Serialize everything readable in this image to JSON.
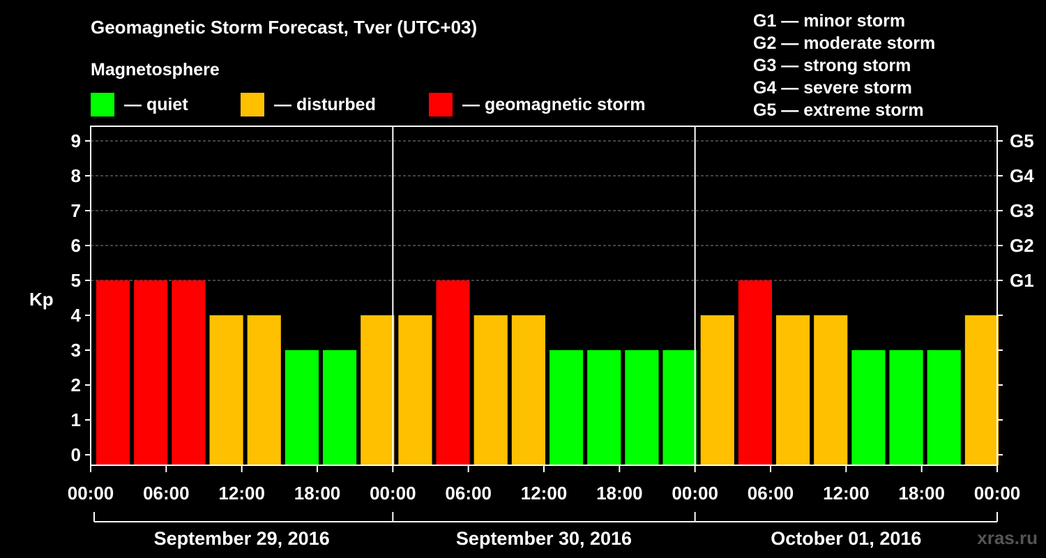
{
  "header": {
    "title": "Geomagnetic Storm Forecast, Tver (UTC+03)",
    "magnetosphere_label": "Magnetosphere"
  },
  "legend": {
    "quiet": {
      "label": "— quiet",
      "color": "#00ff00"
    },
    "disturbed": {
      "label": "— disturbed",
      "color": "#ffc000"
    },
    "storm": {
      "label": "— geomagnetic storm",
      "color": "#ff0000"
    }
  },
  "g_scale": [
    "G1 — minor storm",
    "G2 — moderate storm",
    "G3 — strong storm",
    "G4 — severe storm",
    "G5 — extreme storm"
  ],
  "watermark": "xras.ru",
  "chart_data": {
    "type": "bar",
    "title": "Geomagnetic Storm Forecast, Tver (UTC+03)",
    "ylabel": "Kp",
    "ylim": [
      0,
      9
    ],
    "y_ticks": [
      "0",
      "1",
      "2",
      "3",
      "4",
      "5",
      "6",
      "7",
      "8",
      "9"
    ],
    "right_axis_labels": [
      {
        "kp": 5,
        "label": "G1"
      },
      {
        "kp": 6,
        "label": "G2"
      },
      {
        "kp": 7,
        "label": "G3"
      },
      {
        "kp": 8,
        "label": "G4"
      },
      {
        "kp": 9,
        "label": "G5"
      }
    ],
    "x_tick_labels": [
      "00:00",
      "06:00",
      "12:00",
      "18:00",
      "00:00",
      "06:00",
      "12:00",
      "18:00",
      "00:00",
      "06:00",
      "12:00",
      "18:00",
      "00:00"
    ],
    "days": [
      "September 29, 2016",
      "September 30, 2016",
      "October 01, 2016"
    ],
    "interval_hours": 3,
    "values": [
      5,
      5,
      5,
      4,
      4,
      3,
      3,
      4,
      4,
      5,
      4,
      4,
      3,
      3,
      3,
      3,
      4,
      5,
      4,
      4,
      3,
      3,
      3,
      4
    ],
    "color_rule": {
      "quiet_max": 3,
      "disturbed": 4,
      "storm_min": 5
    },
    "grid": true
  }
}
